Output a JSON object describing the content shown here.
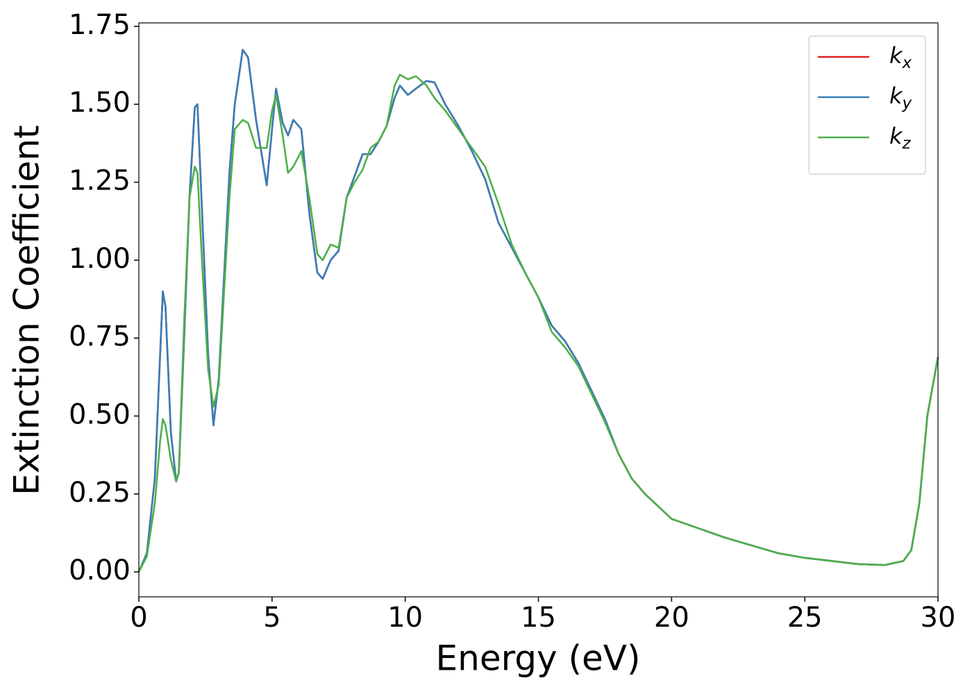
{
  "chart_data": {
    "type": "line",
    "xlabel": "Energy (eV)",
    "ylabel": "Extinction Coefficient",
    "xlim": [
      0,
      30
    ],
    "ylim": [
      -0.08,
      1.761
    ],
    "xticks": [
      0,
      5,
      10,
      15,
      20,
      25,
      30
    ],
    "yticks": [
      {
        "value": 0,
        "label": "0.00"
      },
      0.25,
      {
        "value": 0.5,
        "label": "0.50"
      },
      0.75,
      {
        "value": 1,
        "label": "1.00"
      },
      1.25,
      {
        "value": 1.5,
        "label": "1.50"
      },
      1.75
    ],
    "legend": "upper right",
    "x": [
      0,
      0.3,
      0.6,
      0.8,
      0.9,
      1.0,
      1.2,
      1.4,
      1.5,
      1.7,
      1.9,
      2.1,
      2.2,
      2.4,
      2.6,
      2.8,
      3.0,
      3.2,
      3.4,
      3.6,
      3.9,
      4.1,
      4.4,
      4.8,
      5.0,
      5.15,
      5.4,
      5.6,
      5.8,
      6.1,
      6.4,
      6.7,
      6.9,
      7.2,
      7.5,
      7.8,
      8.1,
      8.4,
      8.7,
      9.0,
      9.3,
      9.6,
      9.8,
      10.1,
      10.4,
      10.8,
      11.1,
      11.5,
      12.0,
      12.5,
      13.0,
      13.5,
      14.0,
      14.5,
      15.0,
      15.5,
      16.0,
      16.5,
      17.0,
      17.5,
      18.0,
      18.5,
      19.0,
      19.5,
      20.0,
      21,
      22,
      23,
      24,
      25,
      26,
      27,
      28,
      28.7,
      29.0,
      29.3,
      29.6,
      30
    ],
    "series": [
      {
        "name": "kx",
        "color": "#e41a1c",
        "values": [
          0,
          0.06,
          0.3,
          0.7,
          0.9,
          0.85,
          0.45,
          0.29,
          0.32,
          0.75,
          1.2,
          1.49,
          1.5,
          1.1,
          0.7,
          0.47,
          0.62,
          0.95,
          1.28,
          1.5,
          1.675,
          1.65,
          1.45,
          1.24,
          1.42,
          1.55,
          1.44,
          1.4,
          1.45,
          1.42,
          1.15,
          0.96,
          0.94,
          1.0,
          1.03,
          1.2,
          1.27,
          1.34,
          1.34,
          1.38,
          1.43,
          1.52,
          1.56,
          1.53,
          1.55,
          1.575,
          1.57,
          1.5,
          1.43,
          1.35,
          1.26,
          1.12,
          1.04,
          0.96,
          0.88,
          0.79,
          0.74,
          0.67,
          0.58,
          0.49,
          0.38,
          0.3,
          0.25,
          0.21,
          0.17,
          0.14,
          0.11,
          0.085,
          0.06,
          0.045,
          0.035,
          0.025,
          0.022,
          0.035,
          0.07,
          0.22,
          0.5,
          0.69
        ]
      },
      {
        "name": "ky",
        "color": "#377eb8",
        "values": [
          0,
          0.06,
          0.3,
          0.7,
          0.9,
          0.85,
          0.45,
          0.29,
          0.32,
          0.75,
          1.2,
          1.49,
          1.5,
          1.1,
          0.7,
          0.47,
          0.62,
          0.95,
          1.28,
          1.5,
          1.675,
          1.65,
          1.45,
          1.24,
          1.42,
          1.55,
          1.44,
          1.4,
          1.45,
          1.42,
          1.15,
          0.96,
          0.94,
          1.0,
          1.03,
          1.2,
          1.27,
          1.34,
          1.34,
          1.38,
          1.43,
          1.52,
          1.56,
          1.53,
          1.55,
          1.575,
          1.57,
          1.5,
          1.43,
          1.35,
          1.26,
          1.12,
          1.04,
          0.96,
          0.88,
          0.79,
          0.74,
          0.67,
          0.58,
          0.49,
          0.38,
          0.3,
          0.25,
          0.21,
          0.17,
          0.14,
          0.11,
          0.085,
          0.06,
          0.045,
          0.035,
          0.025,
          0.022,
          0.035,
          0.07,
          0.22,
          0.5,
          0.69
        ]
      },
      {
        "name": "kz",
        "color": "#4daf4a",
        "values": [
          0,
          0.05,
          0.22,
          0.42,
          0.49,
          0.47,
          0.36,
          0.29,
          0.32,
          0.8,
          1.2,
          1.3,
          1.28,
          0.95,
          0.65,
          0.53,
          0.6,
          0.9,
          1.2,
          1.42,
          1.45,
          1.44,
          1.36,
          1.36,
          1.48,
          1.53,
          1.4,
          1.28,
          1.3,
          1.35,
          1.2,
          1.02,
          1.0,
          1.05,
          1.04,
          1.2,
          1.25,
          1.29,
          1.36,
          1.38,
          1.43,
          1.56,
          1.595,
          1.58,
          1.59,
          1.56,
          1.52,
          1.48,
          1.42,
          1.36,
          1.3,
          1.18,
          1.05,
          0.96,
          0.88,
          0.77,
          0.72,
          0.66,
          0.57,
          0.48,
          0.38,
          0.3,
          0.25,
          0.21,
          0.17,
          0.14,
          0.11,
          0.085,
          0.06,
          0.045,
          0.035,
          0.025,
          0.022,
          0.035,
          0.07,
          0.22,
          0.5,
          0.69
        ]
      }
    ]
  }
}
